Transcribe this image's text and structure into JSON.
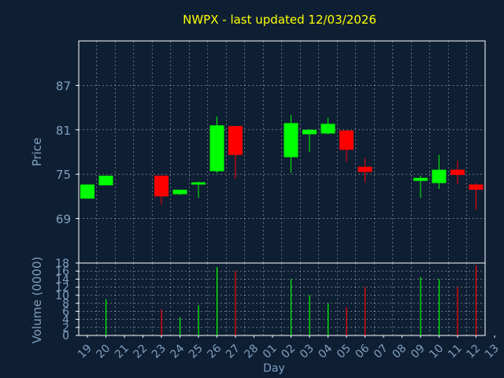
{
  "title": "NWPX - last updated 12/03/2026",
  "colors": {
    "background": "#0f1f33",
    "title": "#ffff00",
    "axis_text": "#7f9fbf",
    "axis_line": "#ffffff",
    "grid": "#ffffff",
    "up": "#00ff00",
    "down": "#ff0000"
  },
  "chart_data": [
    {
      "type": "candlestick",
      "ylabel": "Price",
      "ylim": [
        63,
        93
      ],
      "yticks": [
        69,
        75,
        81,
        87
      ],
      "grid": true,
      "x": [
        "19",
        "20",
        "21",
        "22",
        "23",
        "24",
        "25",
        "26",
        "27",
        "28",
        "01",
        "02",
        "03",
        "04",
        "05",
        "06",
        "07",
        "08",
        "09",
        "10",
        "11",
        "12",
        "13"
      ],
      "candles": [
        {
          "x": "19",
          "open": 71.7,
          "close": 73.6,
          "high": 73.6,
          "low": 71.7
        },
        {
          "x": "20",
          "open": 73.5,
          "close": 74.8,
          "high": 74.8,
          "low": 73.5
        },
        {
          "x": "23",
          "open": 74.8,
          "close": 72.0,
          "high": 74.8,
          "low": 70.9
        },
        {
          "x": "24",
          "open": 72.3,
          "close": 72.9,
          "high": 72.9,
          "low": 72.2
        },
        {
          "x": "25",
          "open": 73.6,
          "close": 73.9,
          "high": 74.0,
          "low": 71.8
        },
        {
          "x": "26",
          "open": 75.4,
          "close": 81.6,
          "high": 82.8,
          "low": 75.2
        },
        {
          "x": "27",
          "open": 81.5,
          "close": 77.6,
          "high": 81.5,
          "low": 74.4
        },
        {
          "x": "02",
          "open": 77.3,
          "close": 81.9,
          "high": 83.0,
          "low": 75.2
        },
        {
          "x": "03",
          "open": 80.4,
          "close": 81.0,
          "high": 81.1,
          "low": 78.0
        },
        {
          "x": "04",
          "open": 80.5,
          "close": 81.8,
          "high": 82.6,
          "low": 80.4
        },
        {
          "x": "05",
          "open": 80.9,
          "close": 78.3,
          "high": 80.9,
          "low": 76.7
        },
        {
          "x": "06",
          "open": 76.0,
          "close": 75.3,
          "high": 77.1,
          "low": 73.9
        },
        {
          "x": "09",
          "open": 74.1,
          "close": 74.5,
          "high": 74.8,
          "low": 71.8
        },
        {
          "x": "10",
          "open": 73.8,
          "close": 75.6,
          "high": 77.6,
          "low": 73.0
        },
        {
          "x": "11",
          "open": 75.6,
          "close": 74.9,
          "high": 76.8,
          "low": 73.7
        },
        {
          "x": "12",
          "open": 73.6,
          "close": 72.9,
          "high": 73.8,
          "low": 70.2
        }
      ]
    },
    {
      "type": "bar",
      "ylabel": "Volume (0000)",
      "xlabel": "Day",
      "ylim": [
        0,
        18
      ],
      "yticks": [
        0,
        2,
        4,
        6,
        8,
        10,
        12,
        14,
        16,
        18
      ],
      "grid": true,
      "bars": [
        {
          "x": "20",
          "value": 9,
          "direction": "up"
        },
        {
          "x": "23",
          "value": 6.5,
          "direction": "down"
        },
        {
          "x": "24",
          "value": 4.5,
          "direction": "up"
        },
        {
          "x": "25",
          "value": 7.5,
          "direction": "up"
        },
        {
          "x": "26",
          "value": 17,
          "direction": "up"
        },
        {
          "x": "27",
          "value": 16,
          "direction": "down"
        },
        {
          "x": "02",
          "value": 14,
          "direction": "up"
        },
        {
          "x": "03",
          "value": 10,
          "direction": "up"
        },
        {
          "x": "04",
          "value": 8,
          "direction": "up"
        },
        {
          "x": "05",
          "value": 7,
          "direction": "down"
        },
        {
          "x": "06",
          "value": 12,
          "direction": "down"
        },
        {
          "x": "09",
          "value": 14.5,
          "direction": "up"
        },
        {
          "x": "10",
          "value": 14,
          "direction": "up"
        },
        {
          "x": "11",
          "value": 12,
          "direction": "down"
        },
        {
          "x": "12",
          "value": 17.5,
          "direction": "down"
        }
      ]
    }
  ]
}
